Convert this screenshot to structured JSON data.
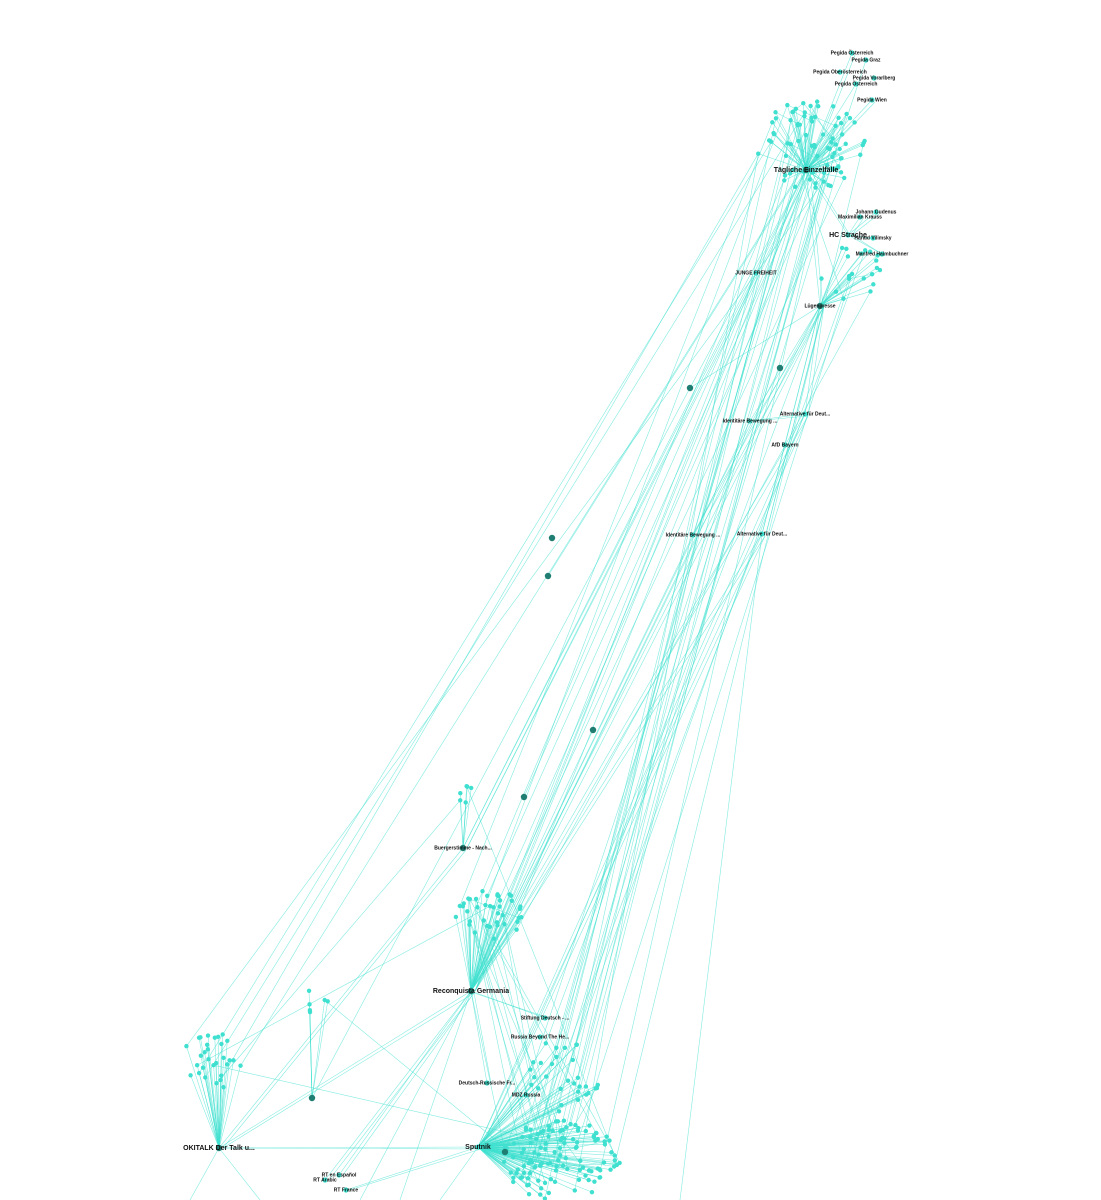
{
  "nodes": [
    {
      "label": "Pegida Österreich"
    },
    {
      "label": "Pegida Graz"
    },
    {
      "label": "Pegida Oberösterreich"
    },
    {
      "label": "Pegida Vorarlberg"
    },
    {
      "label": "Pegida Österreich"
    },
    {
      "label": "Pegida Wien"
    },
    {
      "label": "Tägliche Einzelfälle"
    },
    {
      "label": "Johann Gudenus"
    },
    {
      "label": "Maximilian Krauss"
    },
    {
      "label": "HC Strache"
    },
    {
      "label": "Harald Vilimsky"
    },
    {
      "label": "Manfred Haimbuchner"
    },
    {
      "label": "JUNGE FREIHEIT"
    },
    {
      "label": "Lügenpresse"
    },
    {
      "label": "Alternative für Deut..."
    },
    {
      "label": "Identitäre Bewegung ..."
    },
    {
      "label": "AfD Bayern"
    },
    {
      "label": "Identitäre Bewegung ..."
    },
    {
      "label": "Alternative für Deut..."
    },
    {
      "label": "Buergerstimme - Nach..."
    },
    {
      "label": "Reconquista Germania"
    },
    {
      "label": "Stiftung Deutsch - ..."
    },
    {
      "label": "Russia Beyond The He..."
    },
    {
      "label": "Deutsch-Russische Fr..."
    },
    {
      "label": "MDZ Russia"
    },
    {
      "label": "Sputnik"
    },
    {
      "label": "OKITALK Der Talk u..."
    },
    {
      "label": "RT en Español"
    },
    {
      "label": "RT Arabic"
    },
    {
      "label": "RT France"
    }
  ]
}
